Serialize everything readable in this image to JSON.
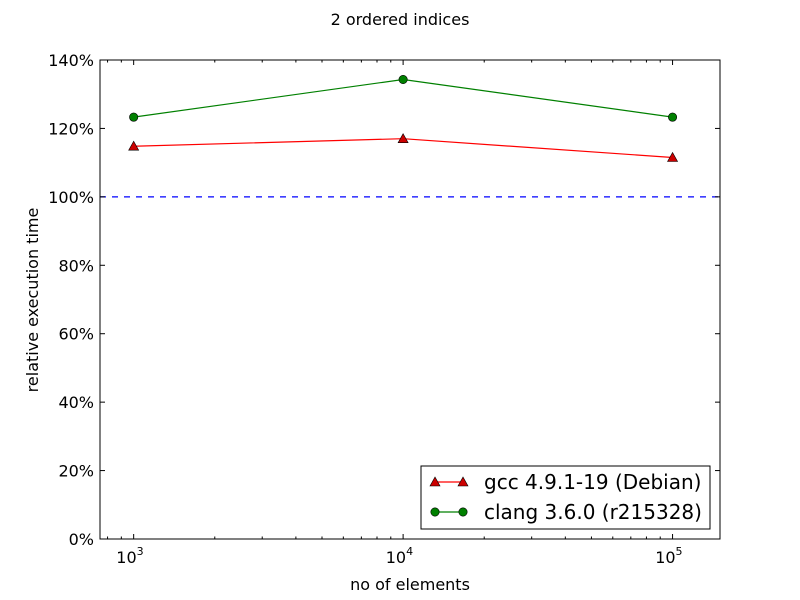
{
  "chart_data": {
    "type": "line",
    "title": "2 ordered indices",
    "xlabel": "no of elements",
    "ylabel": "relative execution time",
    "xscale": "log",
    "xlim": [
      750,
      150000
    ],
    "ylim": [
      0,
      140
    ],
    "x": [
      1000,
      10000,
      100000
    ],
    "x_ticks": [
      {
        "value": 1000,
        "base": "10",
        "exp": "3"
      },
      {
        "value": 10000,
        "base": "10",
        "exp": "4"
      },
      {
        "value": 100000,
        "base": "10",
        "exp": "5"
      }
    ],
    "y_ticks": [
      {
        "value": 0,
        "label": "0%"
      },
      {
        "value": 20,
        "label": "20%"
      },
      {
        "value": 40,
        "label": "40%"
      },
      {
        "value": 60,
        "label": "60%"
      },
      {
        "value": 80,
        "label": "80%"
      },
      {
        "value": 100,
        "label": "100%"
      },
      {
        "value": 120,
        "label": "120%"
      },
      {
        "value": 140,
        "label": "140%"
      }
    ],
    "reference_line": {
      "y": 100,
      "color": "#0000ff",
      "style": "dashed"
    },
    "series": [
      {
        "name": "gcc 4.9.1-19 (Debian)",
        "values": [
          114.8,
          117.0,
          111.5
        ],
        "color": "#ff0000",
        "marker_color": "#cc0000",
        "marker": "triangle"
      },
      {
        "name": "clang 3.6.0 (r215328)",
        "values": [
          123.3,
          134.3,
          123.3
        ],
        "color": "#008000",
        "marker_color": "#008000",
        "marker": "circle"
      }
    ],
    "legend_position": "lower-right",
    "grid": false
  }
}
